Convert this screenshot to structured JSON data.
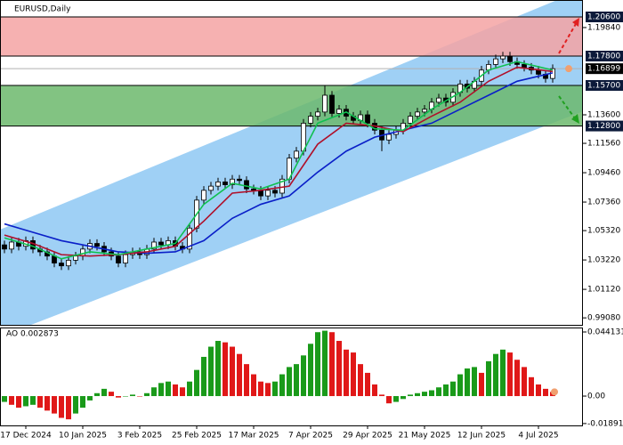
{
  "chart_data": [
    {
      "type": "candlestick",
      "title": "EURUSD,Daily",
      "categories": [
        null,
        null,
        null,
        "17 Dec 2024",
        null,
        null,
        null,
        null,
        null,
        null,
        null,
        "10 Jan 2025",
        null,
        null,
        null,
        null,
        null,
        null,
        null,
        "3 Feb 2025",
        null,
        null,
        null,
        null,
        null,
        null,
        null,
        "25 Feb 2025",
        null,
        null,
        null,
        null,
        null,
        null,
        null,
        "17 Mar 2025",
        null,
        null,
        null,
        null,
        null,
        null,
        null,
        "7 Apr 2025",
        null,
        null,
        null,
        null,
        null,
        null,
        null,
        "29 Apr 2025",
        null,
        null,
        null,
        null,
        null,
        null,
        null,
        "21 May 2025",
        null,
        null,
        null,
        null,
        null,
        null,
        null,
        "12 Jun 2025",
        null,
        null,
        null,
        null,
        null,
        null,
        null,
        "4 Jul 2025",
        null,
        null
      ],
      "open": [
        1.043,
        1.04,
        1.045,
        1.042,
        1.046,
        1.04,
        1.038,
        1.035,
        1.03,
        1.028,
        1.032,
        1.035,
        1.04,
        1.044,
        1.042,
        1.038,
        1.035,
        1.03,
        1.036,
        1.038,
        1.036,
        1.04,
        1.045,
        1.043,
        1.046,
        1.042,
        1.04,
        1.055,
        1.075,
        1.082,
        1.085,
        1.088,
        1.086,
        1.09,
        1.089,
        1.083,
        1.082,
        1.078,
        1.082,
        1.08,
        1.09,
        1.105,
        1.11,
        1.13,
        1.135,
        1.138,
        1.15,
        1.137,
        1.14,
        1.135,
        1.132,
        1.136,
        1.13,
        1.125,
        1.118,
        1.122,
        1.125,
        1.13,
        1.135,
        1.138,
        1.14,
        1.145,
        1.148,
        1.145,
        1.152,
        1.158,
        1.155,
        1.16,
        1.168,
        1.172,
        1.176,
        1.178,
        1.174,
        1.172,
        1.17,
        1.168,
        1.165,
        1.162
      ],
      "high": [
        1.046,
        1.048,
        1.048,
        1.049,
        1.049,
        1.043,
        1.041,
        1.038,
        1.033,
        1.035,
        1.038,
        1.043,
        1.047,
        1.047,
        1.045,
        1.041,
        1.038,
        1.039,
        1.041,
        1.041,
        1.043,
        1.048,
        1.048,
        1.049,
        1.049,
        1.045,
        1.058,
        1.078,
        1.085,
        1.088,
        1.091,
        1.091,
        1.093,
        1.093,
        1.092,
        1.086,
        1.085,
        1.085,
        1.085,
        1.093,
        1.108,
        1.113,
        1.133,
        1.138,
        1.141,
        1.157,
        1.153,
        1.143,
        1.143,
        1.138,
        1.139,
        1.139,
        1.133,
        1.128,
        1.125,
        1.128,
        1.133,
        1.138,
        1.141,
        1.143,
        1.148,
        1.151,
        1.151,
        1.155,
        1.161,
        1.161,
        1.163,
        1.171,
        1.175,
        1.179,
        1.181,
        1.181,
        1.177,
        1.175,
        1.173,
        1.171,
        1.168,
        1.172
      ],
      "low": [
        1.037,
        1.037,
        1.039,
        1.039,
        1.037,
        1.035,
        1.032,
        1.027,
        1.025,
        1.025,
        1.029,
        1.032,
        1.037,
        1.039,
        1.035,
        1.032,
        1.027,
        1.027,
        1.033,
        1.033,
        1.033,
        1.037,
        1.04,
        1.04,
        1.039,
        1.037,
        1.037,
        1.052,
        1.072,
        1.079,
        1.082,
        1.083,
        1.083,
        1.086,
        1.08,
        1.079,
        1.075,
        1.075,
        1.077,
        1.077,
        1.087,
        1.102,
        1.107,
        1.127,
        1.132,
        1.135,
        1.134,
        1.134,
        1.132,
        1.129,
        1.129,
        1.127,
        1.122,
        1.11,
        1.115,
        1.119,
        1.122,
        1.127,
        1.132,
        1.135,
        1.137,
        1.142,
        1.142,
        1.142,
        1.149,
        1.152,
        1.152,
        1.157,
        1.165,
        1.169,
        1.173,
        1.171,
        1.169,
        1.167,
        1.165,
        1.162,
        1.159,
        1.159
      ],
      "close": [
        1.04,
        1.045,
        1.042,
        1.046,
        1.04,
        1.038,
        1.035,
        1.03,
        1.028,
        1.032,
        1.035,
        1.04,
        1.044,
        1.042,
        1.038,
        1.035,
        1.03,
        1.036,
        1.038,
        1.036,
        1.04,
        1.045,
        1.043,
        1.046,
        1.042,
        1.04,
        1.055,
        1.075,
        1.082,
        1.085,
        1.088,
        1.086,
        1.09,
        1.089,
        1.083,
        1.082,
        1.078,
        1.082,
        1.08,
        1.09,
        1.105,
        1.11,
        1.13,
        1.135,
        1.138,
        1.15,
        1.137,
        1.14,
        1.135,
        1.132,
        1.136,
        1.13,
        1.125,
        1.118,
        1.122,
        1.125,
        1.13,
        1.135,
        1.138,
        1.14,
        1.145,
        1.148,
        1.145,
        1.152,
        1.158,
        1.155,
        1.16,
        1.168,
        1.172,
        1.176,
        1.178,
        1.174,
        1.172,
        1.17,
        1.168,
        1.165,
        1.162,
        1.169
      ],
      "series": [
        {
          "color": "#0a1fc8",
          "x": [
            0,
            4,
            8,
            12,
            16,
            20,
            24,
            28,
            32,
            36,
            40,
            44,
            48,
            52,
            56,
            60,
            64,
            68,
            72,
            77
          ],
          "values": [
            1.058,
            1.052,
            1.046,
            1.042,
            1.038,
            1.037,
            1.038,
            1.046,
            1.062,
            1.072,
            1.078,
            1.095,
            1.11,
            1.12,
            1.125,
            1.13,
            1.14,
            1.15,
            1.16,
            1.166
          ]
        },
        {
          "color": "#b0102a",
          "x": [
            0,
            4,
            8,
            12,
            16,
            20,
            24,
            28,
            32,
            36,
            40,
            44,
            48,
            52,
            56,
            60,
            64,
            68,
            72,
            77
          ],
          "values": [
            1.05,
            1.044,
            1.036,
            1.035,
            1.036,
            1.038,
            1.042,
            1.06,
            1.08,
            1.082,
            1.085,
            1.115,
            1.13,
            1.128,
            1.124,
            1.135,
            1.145,
            1.16,
            1.17,
            1.167
          ]
        },
        {
          "color": "#10c050",
          "x": [
            0,
            4,
            8,
            12,
            16,
            20,
            24,
            28,
            32,
            36,
            40,
            44,
            48,
            52,
            56,
            60,
            64,
            68,
            72,
            77
          ],
          "values": [
            1.048,
            1.042,
            1.033,
            1.038,
            1.036,
            1.04,
            1.044,
            1.072,
            1.087,
            1.083,
            1.09,
            1.13,
            1.138,
            1.126,
            1.125,
            1.14,
            1.152,
            1.168,
            1.174,
            1.168
          ]
        }
      ],
      "channel": {
        "color": "#9fd0f5",
        "x": [
          -0.625,
          81.25
        ],
        "upper": [
          1.0539,
          1.2257
        ],
        "lower": [
          0.9772,
          1.1385
        ]
      },
      "zones": [
        {
          "from": 1.178,
          "to": 1.206,
          "color": "#f5a3a3"
        },
        {
          "from": 1.128,
          "to": 1.157,
          "color": "#6cb86c"
        }
      ],
      "levels": [
        {
          "value": 1.206,
          "label": "1.20600"
        },
        {
          "value": 1.178,
          "label": "1.17800"
        },
        {
          "value": 1.157,
          "label": "1.15700"
        },
        {
          "value": 1.128,
          "label": "1.12800"
        }
      ],
      "last_price": {
        "value": 1.16899,
        "label": "1.16899"
      },
      "ylim": [
        0.9858,
        1.2181
      ],
      "yticks": [
        {
          "value": 1.1984,
          "label": "1.19840"
        },
        {
          "value": 1.136,
          "label": "1.13600"
        },
        {
          "value": 1.1156,
          "label": "1.11560"
        },
        {
          "value": 1.0946,
          "label": "1.09460"
        },
        {
          "value": 1.0736,
          "label": "1.07360"
        },
        {
          "value": 1.0532,
          "label": "1.05320"
        },
        {
          "value": 1.0322,
          "label": "1.03220"
        },
        {
          "value": 1.0112,
          "label": "1.01120"
        },
        {
          "value": 0.9908,
          "label": "0.99080"
        }
      ]
    },
    {
      "type": "bar",
      "title": "AO 0.002873",
      "up_color": "#1a9a1a",
      "down_color": "#e01818",
      "values": [
        -0.004,
        -0.006,
        -0.008,
        -0.007,
        -0.006,
        -0.008,
        -0.01,
        -0.012,
        -0.015,
        -0.016,
        -0.012,
        -0.008,
        -0.003,
        0.002,
        0.005,
        0.003,
        -0.001,
        0.0,
        0.001,
        0.0,
        0.002,
        0.006,
        0.009,
        0.01,
        0.008,
        0.006,
        0.01,
        0.018,
        0.027,
        0.034,
        0.038,
        0.037,
        0.034,
        0.029,
        0.022,
        0.015,
        0.01,
        0.009,
        0.01,
        0.015,
        0.02,
        0.022,
        0.028,
        0.036,
        0.044,
        0.045,
        0.044,
        0.038,
        0.032,
        0.03,
        0.022,
        0.016,
        0.008,
        0.001,
        -0.005,
        -0.004,
        -0.002,
        0.001,
        0.002,
        0.003,
        0.004,
        0.006,
        0.008,
        0.01,
        0.015,
        0.019,
        0.02,
        0.016,
        0.024,
        0.029,
        0.032,
        0.03,
        0.025,
        0.02,
        0.013,
        0.008,
        0.005,
        0.002873
      ],
      "ylim": [
        -0.0202,
        0.0472
      ],
      "yticks": [
        {
          "value": 0.044131,
          "label": "0.044131"
        },
        {
          "value": 0,
          "label": "0.00"
        },
        {
          "value": -0.01891,
          "label": "-0.01891"
        }
      ]
    }
  ]
}
